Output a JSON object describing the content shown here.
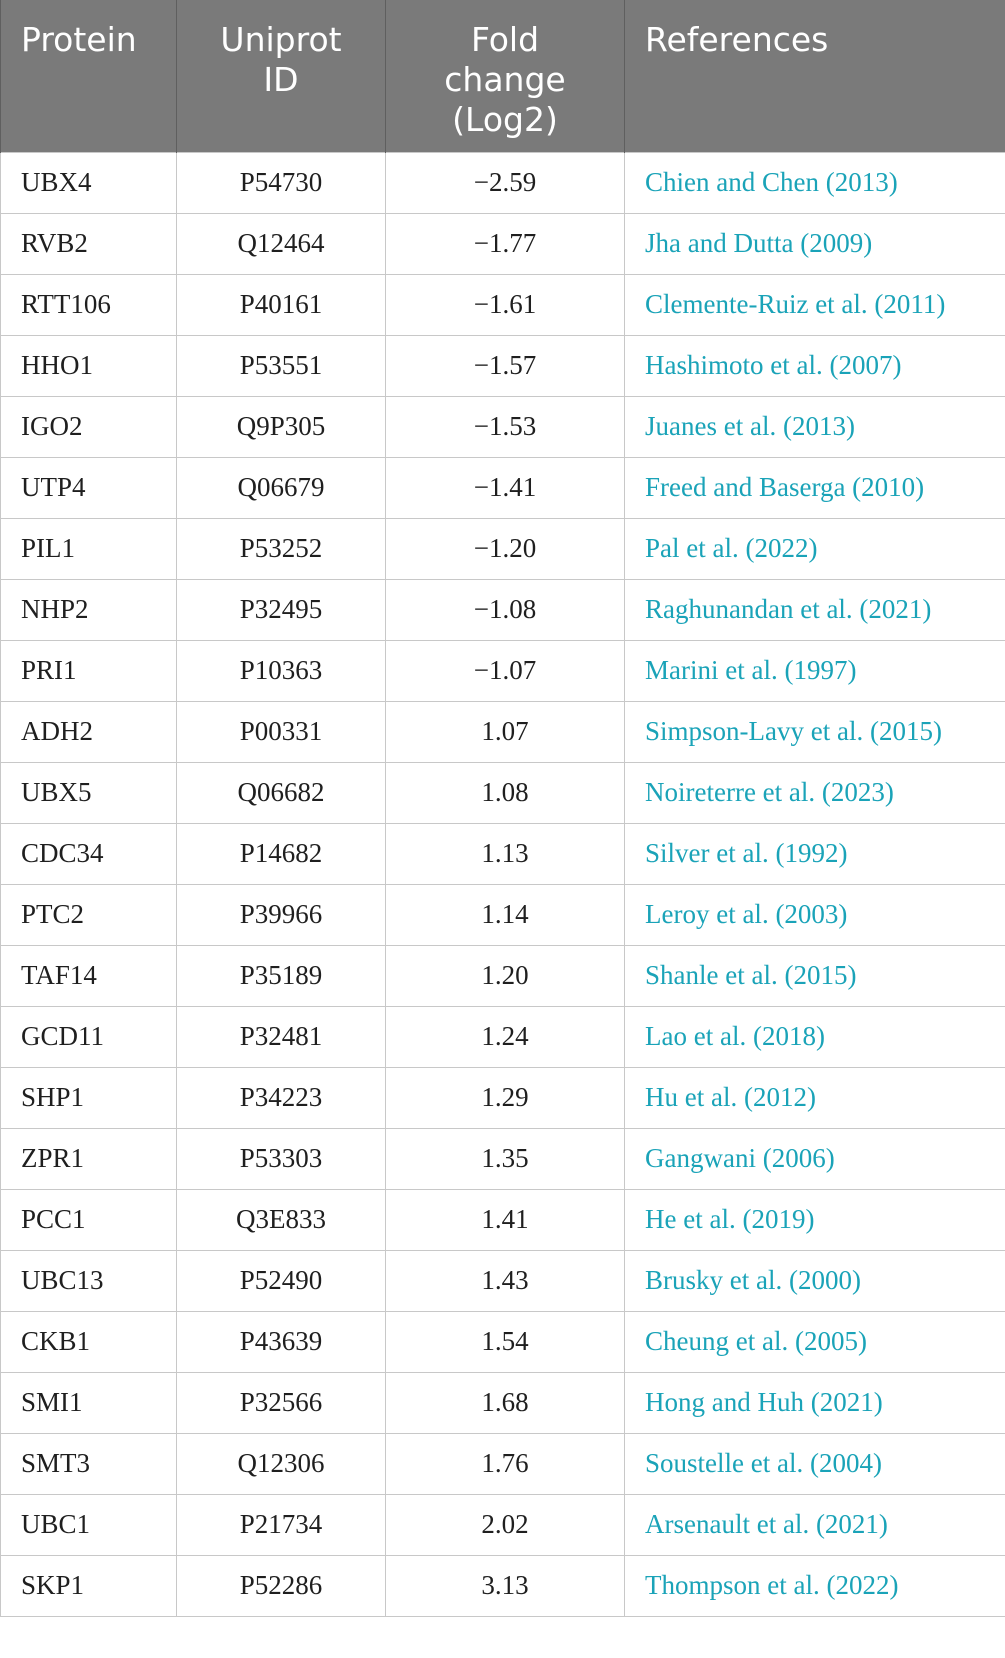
{
  "table": {
    "headers": {
      "protein": "Protein",
      "uniprot_line1": "Uniprot",
      "uniprot_line2": "ID",
      "fold_line1": "Fold",
      "fold_line2": "change",
      "fold_line3": "(Log2)",
      "references": "References"
    },
    "rows": [
      {
        "protein": "UBX4",
        "uniprot": "P54730",
        "fold": "−2.59",
        "ref": "Chien and Chen (2013)"
      },
      {
        "protein": "RVB2",
        "uniprot": "Q12464",
        "fold": "−1.77",
        "ref": "Jha and Dutta (2009)"
      },
      {
        "protein": "RTT106",
        "uniprot": "P40161",
        "fold": "−1.61",
        "ref": "Clemente-Ruiz et al. (2011)"
      },
      {
        "protein": "HHO1",
        "uniprot": "P53551",
        "fold": "−1.57",
        "ref": "Hashimoto et al. (2007)"
      },
      {
        "protein": "IGO2",
        "uniprot": "Q9P305",
        "fold": "−1.53",
        "ref": "Juanes et al. (2013)"
      },
      {
        "protein": "UTP4",
        "uniprot": "Q06679",
        "fold": "−1.41",
        "ref": "Freed and Baserga (2010)"
      },
      {
        "protein": "PIL1",
        "uniprot": "P53252",
        "fold": "−1.20",
        "ref": "Pal et al. (2022)"
      },
      {
        "protein": "NHP2",
        "uniprot": "P32495",
        "fold": "−1.08",
        "ref": "Raghunandan et al. (2021)"
      },
      {
        "protein": "PRI1",
        "uniprot": "P10363",
        "fold": "−1.07",
        "ref": "Marini et al. (1997)"
      },
      {
        "protein": "ADH2",
        "uniprot": "P00331",
        "fold": "1.07",
        "ref": "Simpson-Lavy et al. (2015)"
      },
      {
        "protein": "UBX5",
        "uniprot": "Q06682",
        "fold": "1.08",
        "ref": "Noireterre et al. (2023)"
      },
      {
        "protein": "CDC34",
        "uniprot": "P14682",
        "fold": "1.13",
        "ref": "Silver et al. (1992)"
      },
      {
        "protein": "PTC2",
        "uniprot": "P39966",
        "fold": "1.14",
        "ref": "Leroy et al. (2003)"
      },
      {
        "protein": "TAF14",
        "uniprot": "P35189",
        "fold": "1.20",
        "ref": "Shanle et al. (2015)"
      },
      {
        "protein": "GCD11",
        "uniprot": "P32481",
        "fold": "1.24",
        "ref": "Lao et al. (2018)"
      },
      {
        "protein": "SHP1",
        "uniprot": "P34223",
        "fold": "1.29",
        "ref": "Hu et al. (2012)"
      },
      {
        "protein": "ZPR1",
        "uniprot": "P53303",
        "fold": "1.35",
        "ref": "Gangwani (2006)"
      },
      {
        "protein": "PCC1",
        "uniprot": "Q3E833",
        "fold": "1.41",
        "ref": "He et al. (2019)"
      },
      {
        "protein": "UBC13",
        "uniprot": "P52490",
        "fold": "1.43",
        "ref": "Brusky et al. (2000)"
      },
      {
        "protein": "CKB1",
        "uniprot": "P43639",
        "fold": "1.54",
        "ref": "Cheung et al. (2005)"
      },
      {
        "protein": "SMI1",
        "uniprot": "P32566",
        "fold": "1.68",
        "ref": "Hong and Huh (2021)"
      },
      {
        "protein": "SMT3",
        "uniprot": "Q12306",
        "fold": "1.76",
        "ref": "Soustelle et al. (2004)"
      },
      {
        "protein": "UBC1",
        "uniprot": "P21734",
        "fold": "2.02",
        "ref": "Arsenault et al. (2021)"
      },
      {
        "protein": "SKP1",
        "uniprot": "P52286",
        "fold": "3.13",
        "ref": "Thompson et al. (2022)"
      }
    ]
  },
  "colors": {
    "header_bg": "#7a7a7a",
    "header_text": "#ffffff",
    "reference_link": "#1aa3b8",
    "grid_line": "#c8c8c8"
  }
}
